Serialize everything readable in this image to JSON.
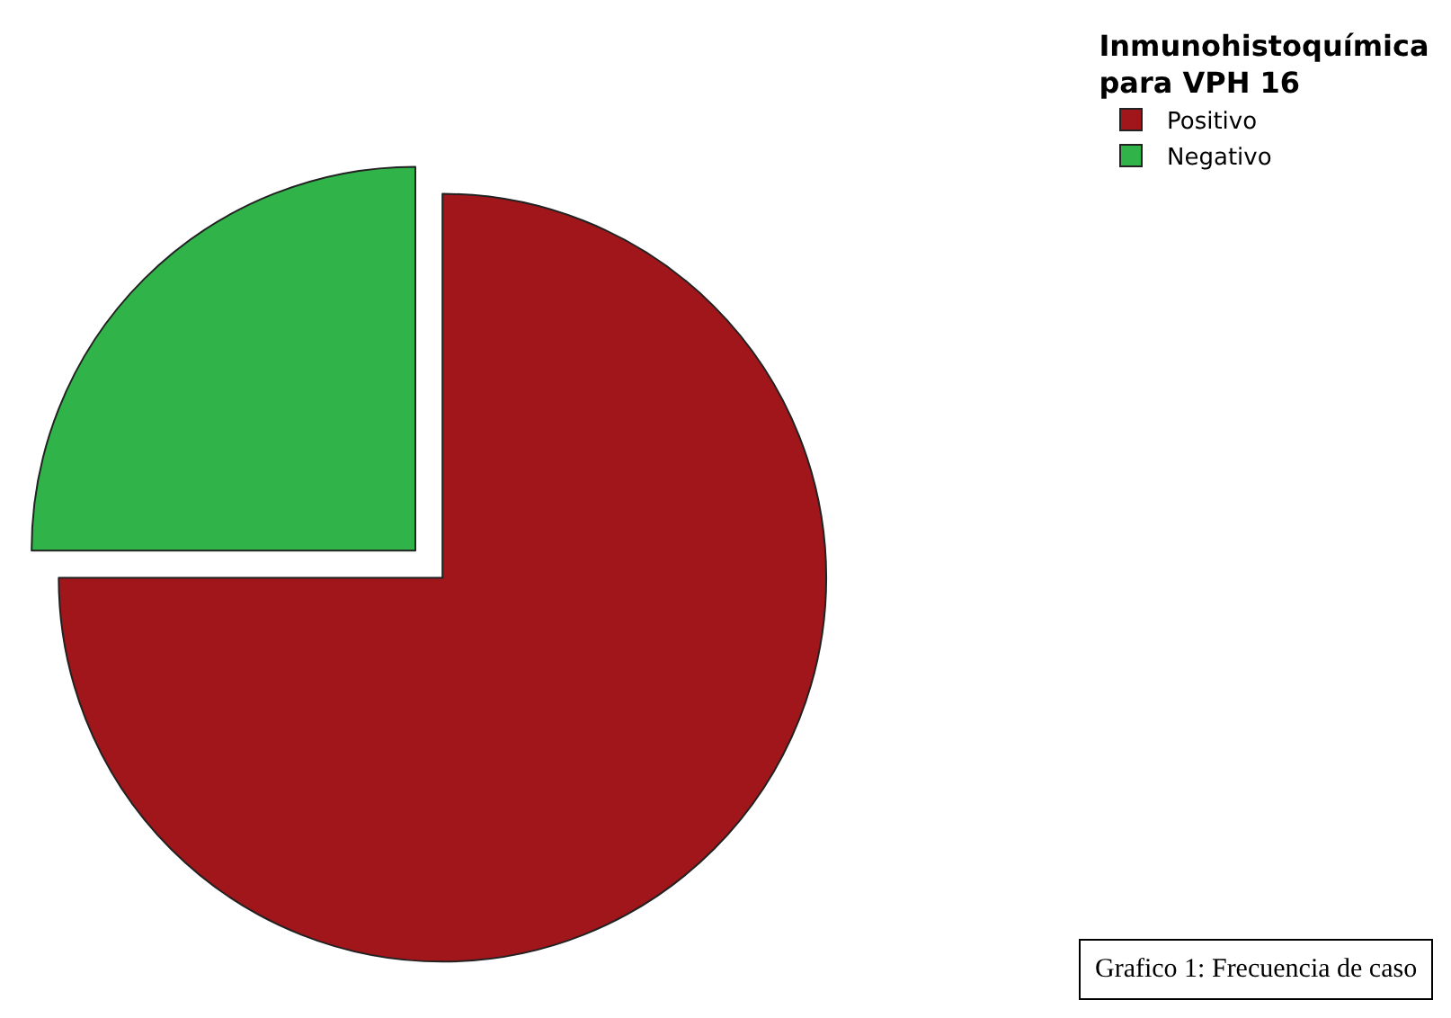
{
  "chart_data": {
    "type": "pie",
    "legend_title": "Inmunohistoquímica\npara VPH 16",
    "categories": [
      "Positivo",
      "Negativo"
    ],
    "values": [
      75,
      25
    ],
    "colors": [
      "#a0161a",
      "#30b44a"
    ],
    "legend": "top right",
    "annotations": [
      "Grafico 1: Frecuencia de caso"
    ]
  }
}
